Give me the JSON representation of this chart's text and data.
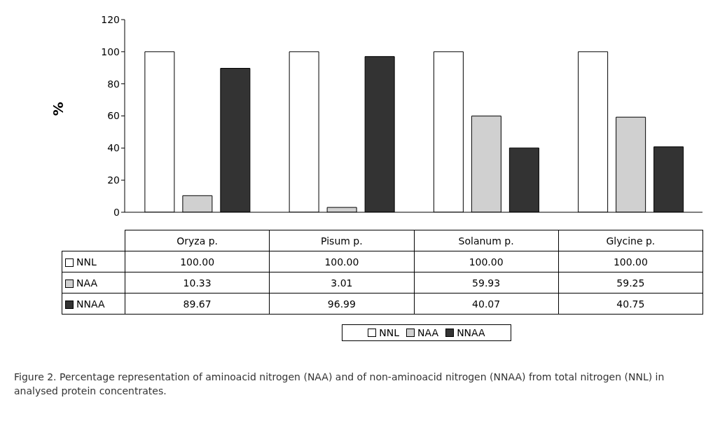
{
  "chart_data": {
    "type": "bar",
    "ylabel": "%",
    "categories": [
      "Oryza p.",
      "Pisum p.",
      "Solanum p.",
      "Glycine p."
    ],
    "series": [
      {
        "name": "NNL",
        "color": "#ffffff",
        "values": [
          100.0,
          100.0,
          100.0,
          100.0
        ],
        "value_labels": [
          "100.00",
          "100.00",
          "100.00",
          "100.00"
        ]
      },
      {
        "name": "NAA",
        "color": "#d0d0d0",
        "values": [
          10.33,
          3.01,
          59.93,
          59.25
        ],
        "value_labels": [
          "10.33",
          "3.01",
          "59.93",
          "59.25"
        ]
      },
      {
        "name": "NNAA",
        "color": "#333333",
        "values": [
          89.67,
          96.99,
          40.07,
          40.75
        ],
        "value_labels": [
          "89.67",
          "96.99",
          "40.07",
          "40.75"
        ]
      }
    ],
    "ylim": [
      0,
      120
    ],
    "yticks": [
      0,
      20,
      40,
      60,
      80,
      100,
      120
    ],
    "grid": false,
    "legend": "bottom",
    "annotations": [
      "Figure 2. Percentage representation of aminoacid nitrogen (NAA) and of non-aminoacid nitrogen (NNAA) from total nitrogen (NNL) in analysed protein concentrates."
    ]
  }
}
